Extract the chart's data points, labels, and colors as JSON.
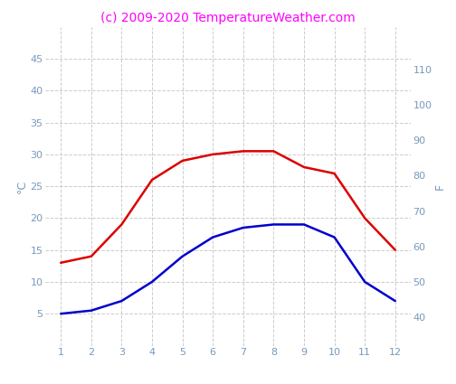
{
  "months": [
    1,
    2,
    3,
    4,
    5,
    6,
    7,
    8,
    9,
    10,
    11,
    12
  ],
  "red_line": [
    13,
    14,
    19,
    26,
    29,
    30,
    30.5,
    30.5,
    28,
    27,
    20,
    15
  ],
  "blue_line": [
    5,
    5.5,
    7,
    10,
    14,
    17,
    18.5,
    19,
    19,
    17,
    10,
    7
  ],
  "red_color": "#dd0000",
  "blue_color": "#0000cc",
  "title": "(c) 2009-2020 TemperatureWeather.com",
  "title_color": "#ff00ff",
  "left_ylabel": "°C",
  "right_ylabel": "F",
  "left_ylim": [
    0,
    50
  ],
  "right_ylim": [
    32,
    122
  ],
  "left_yticks": [
    5,
    10,
    15,
    20,
    25,
    30,
    35,
    40,
    45
  ],
  "right_yticks": [
    40,
    50,
    60,
    70,
    80,
    90,
    100,
    110
  ],
  "xticks": [
    1,
    2,
    3,
    4,
    5,
    6,
    7,
    8,
    9,
    10,
    11,
    12
  ],
  "tick_label_color": "#7799bb",
  "axis_label_color": "#7799bb",
  "background_color": "#ffffff",
  "grid_color": "#cccccc",
  "grid_style": "--",
  "line_width": 1.8,
  "title_fontsize": 10,
  "tick_fontsize": 8,
  "ylabel_fontsize": 9
}
